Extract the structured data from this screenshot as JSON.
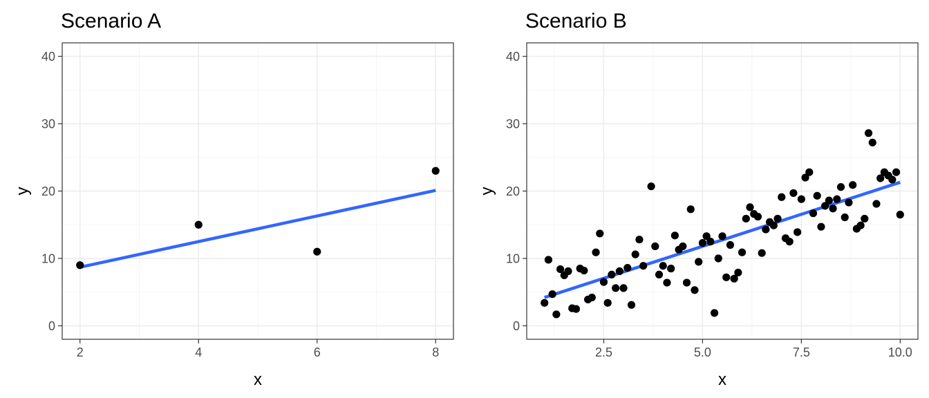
{
  "chart_data": [
    {
      "type": "scatter",
      "title": "Scenario A",
      "xlabel": "x",
      "ylabel": "y",
      "xlim": [
        1.7,
        8.3
      ],
      "ylim": [
        -2,
        42
      ],
      "xticks": [
        2,
        4,
        6,
        8
      ],
      "xtick_labels": [
        "2",
        "4",
        "6",
        "8"
      ],
      "xminor": [
        3,
        5,
        7
      ],
      "yticks": [
        0,
        10,
        20,
        30,
        40
      ],
      "ytick_labels": [
        "0",
        "10",
        "20",
        "30",
        "40"
      ],
      "yminor": [
        5,
        15,
        25,
        35
      ],
      "grid": true,
      "points": [
        [
          2,
          9
        ],
        [
          4,
          15
        ],
        [
          6,
          11
        ],
        [
          8,
          23
        ]
      ],
      "fit_line": {
        "x": [
          2,
          8
        ],
        "y": [
          8.7,
          20.1
        ],
        "color": "#3366ff"
      },
      "point_color": "#000000"
    },
    {
      "type": "scatter",
      "title": "Scenario B",
      "xlabel": "x",
      "ylabel": "y",
      "xlim": [
        0.55,
        10.45
      ],
      "ylim": [
        -2,
        42
      ],
      "xticks": [
        2.5,
        5.0,
        7.5,
        10.0
      ],
      "xtick_labels": [
        "2.5",
        "5.0",
        "7.5",
        "10.0"
      ],
      "xminor": [
        1.25,
        3.75,
        6.25,
        8.75
      ],
      "yticks": [
        0,
        10,
        20,
        30,
        40
      ],
      "ytick_labels": [
        "0",
        "10",
        "20",
        "30",
        "40"
      ],
      "yminor": [
        5,
        15,
        25,
        35
      ],
      "grid": true,
      "points": [
        [
          1.0,
          3.4
        ],
        [
          1.1,
          9.8
        ],
        [
          1.2,
          4.7
        ],
        [
          1.3,
          1.7
        ],
        [
          1.4,
          8.4
        ],
        [
          1.5,
          7.5
        ],
        [
          1.6,
          8.1
        ],
        [
          1.7,
          2.6
        ],
        [
          1.8,
          2.5
        ],
        [
          1.9,
          8.5
        ],
        [
          2.0,
          8.2
        ],
        [
          2.1,
          3.9
        ],
        [
          2.2,
          4.2
        ],
        [
          2.3,
          10.9
        ],
        [
          2.4,
          13.7
        ],
        [
          2.5,
          6.5
        ],
        [
          2.6,
          3.4
        ],
        [
          2.7,
          7.6
        ],
        [
          2.8,
          5.6
        ],
        [
          2.9,
          8.1
        ],
        [
          3.0,
          5.6
        ],
        [
          3.1,
          8.6
        ],
        [
          3.2,
          3.1
        ],
        [
          3.3,
          10.6
        ],
        [
          3.4,
          12.8
        ],
        [
          3.5,
          8.9
        ],
        [
          3.7,
          20.7
        ],
        [
          3.8,
          11.8
        ],
        [
          3.9,
          7.6
        ],
        [
          4.0,
          8.9
        ],
        [
          4.1,
          6.4
        ],
        [
          4.2,
          8.5
        ],
        [
          4.3,
          13.4
        ],
        [
          4.4,
          11.3
        ],
        [
          4.5,
          11.8
        ],
        [
          4.6,
          6.4
        ],
        [
          4.7,
          17.3
        ],
        [
          4.8,
          5.3
        ],
        [
          4.9,
          9.5
        ],
        [
          5.0,
          12.3
        ],
        [
          5.1,
          13.3
        ],
        [
          5.2,
          12.5
        ],
        [
          5.3,
          1.9
        ],
        [
          5.4,
          10.0
        ],
        [
          5.5,
          13.3
        ],
        [
          5.6,
          7.2
        ],
        [
          5.7,
          12.0
        ],
        [
          5.8,
          7.0
        ],
        [
          5.9,
          7.9
        ],
        [
          6.0,
          10.9
        ],
        [
          6.1,
          15.9
        ],
        [
          6.2,
          17.6
        ],
        [
          6.3,
          16.6
        ],
        [
          6.4,
          16.2
        ],
        [
          6.5,
          10.8
        ],
        [
          6.6,
          14.3
        ],
        [
          6.7,
          15.4
        ],
        [
          6.8,
          14.9
        ],
        [
          6.9,
          15.9
        ],
        [
          7.0,
          19.1
        ],
        [
          7.1,
          13.0
        ],
        [
          7.2,
          12.5
        ],
        [
          7.3,
          19.7
        ],
        [
          7.4,
          13.9
        ],
        [
          7.5,
          18.8
        ],
        [
          7.6,
          22.0
        ],
        [
          7.7,
          22.8
        ],
        [
          7.8,
          16.7
        ],
        [
          7.9,
          19.3
        ],
        [
          8.0,
          14.7
        ],
        [
          8.1,
          17.8
        ],
        [
          8.2,
          18.6
        ],
        [
          8.3,
          17.4
        ],
        [
          8.4,
          18.8
        ],
        [
          8.5,
          20.6
        ],
        [
          8.6,
          16.1
        ],
        [
          8.7,
          18.3
        ],
        [
          8.8,
          20.9
        ],
        [
          8.9,
          14.4
        ],
        [
          9.0,
          14.9
        ],
        [
          9.1,
          15.9
        ],
        [
          9.2,
          28.6
        ],
        [
          9.3,
          27.2
        ],
        [
          9.4,
          18.1
        ],
        [
          9.5,
          21.9
        ],
        [
          9.6,
          22.8
        ],
        [
          9.7,
          22.3
        ],
        [
          9.8,
          21.7
        ],
        [
          9.9,
          22.8
        ],
        [
          10.0,
          16.5
        ]
      ],
      "fit_line": {
        "x": [
          1.0,
          10.0
        ],
        "y": [
          4.2,
          21.3
        ],
        "color": "#3366ff"
      },
      "point_color": "#000000"
    }
  ]
}
